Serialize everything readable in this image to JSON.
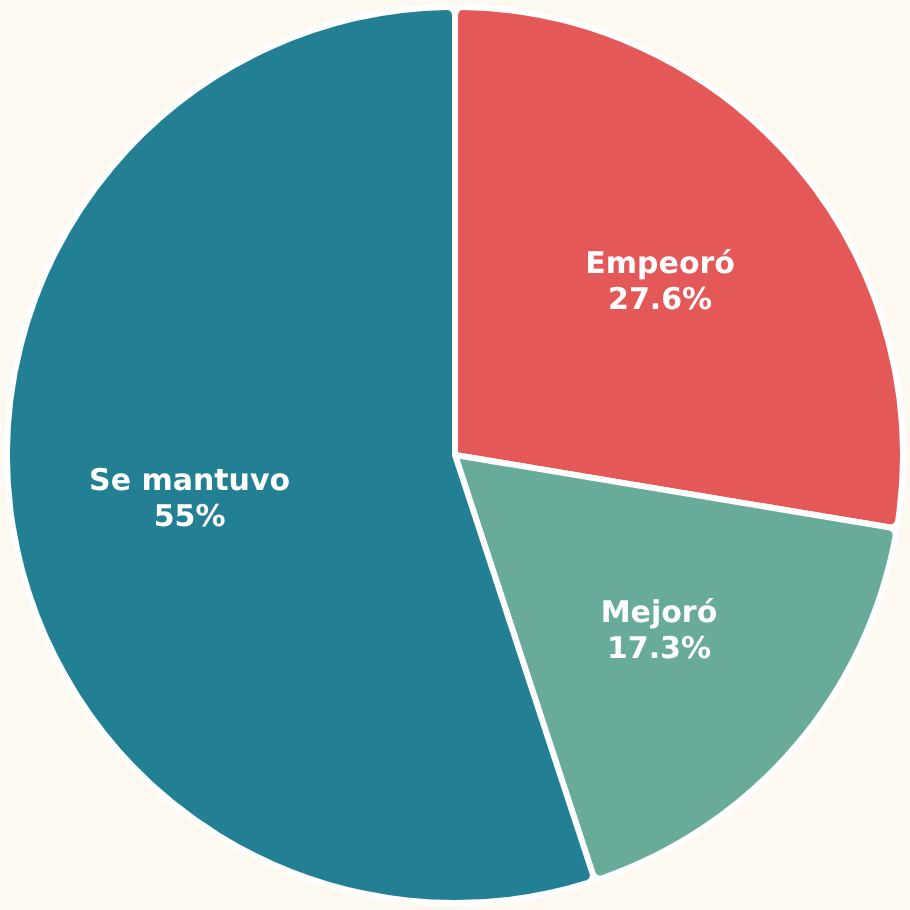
{
  "chart_data": {
    "type": "pie",
    "categories": [
      "Empeoró",
      "Mejoró",
      "Se mantuvo"
    ],
    "values": [
      27.6,
      17.3,
      55
    ],
    "value_labels": [
      "27.6%",
      "17.3%",
      "55%"
    ],
    "colors": [
      "#e55858",
      "#68ab9a",
      "#237f93"
    ]
  }
}
